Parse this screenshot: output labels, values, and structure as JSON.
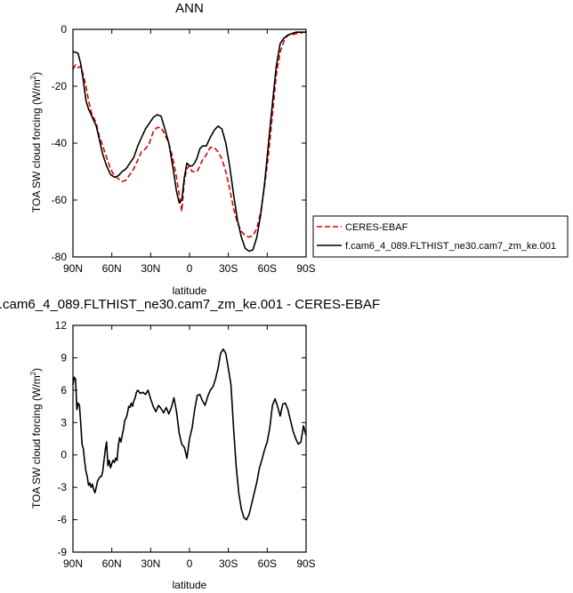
{
  "chart_data": [
    {
      "type": "line",
      "title": "ANN",
      "xlabel": "latitude",
      "ylabel": "TOA SW cloud forcing (W/m",
      "ylabel_sup": "2",
      "ylabel_tail": ")",
      "xlim": [
        90,
        -90
      ],
      "ylim": [
        -80,
        0
      ],
      "xticks": [
        90,
        60,
        30,
        0,
        -30,
        -60,
        -90
      ],
      "xtick_labels": [
        "90N",
        "60N",
        "30N",
        "0",
        "30S",
        "60S",
        "90S"
      ],
      "yticks": [
        0,
        -20,
        -40,
        -60,
        -80
      ],
      "ytick_labels": [
        "0",
        "-20",
        "-40",
        "-60",
        "-80"
      ],
      "legend_position": "right",
      "series": [
        {
          "name": "CERES-EBAF",
          "color": "#dd0000",
          "dash": "dashed",
          "x": [
            90,
            88,
            86,
            84,
            82,
            80,
            78,
            76,
            74,
            72,
            70,
            67,
            64,
            61,
            58,
            55,
            52,
            49,
            46,
            43,
            40,
            37,
            34,
            31,
            28,
            25,
            22,
            19,
            16,
            13,
            10,
            8,
            6,
            4,
            2,
            0,
            -2,
            -4,
            -6,
            -8,
            -10,
            -13,
            -16,
            -19,
            -22,
            -25,
            -28,
            -31,
            -34,
            -37,
            -40,
            -43,
            -46,
            -49,
            -52,
            -55,
            -58,
            -61,
            -64,
            -67,
            -70,
            -73,
            -76,
            -79,
            -82,
            -85,
            -88,
            -90
          ],
          "y": [
            -14,
            -12.5,
            -13.5,
            -13,
            -16,
            -20,
            -25,
            -29,
            -31,
            -33,
            -37,
            -41,
            -45,
            -49,
            -51.5,
            -52.5,
            -53.5,
            -53,
            -51,
            -49,
            -46,
            -43,
            -42,
            -40,
            -36,
            -34.5,
            -34.5,
            -37,
            -40,
            -45,
            -52,
            -58,
            -64,
            -53,
            -49,
            -48,
            -50,
            -50,
            -50,
            -48,
            -46,
            -44,
            -41.5,
            -41.5,
            -43,
            -45.5,
            -50,
            -56,
            -63,
            -68,
            -71,
            -72.5,
            -73,
            -72.5,
            -70,
            -64,
            -55,
            -44,
            -30,
            -16,
            -8,
            -4,
            -2,
            -2,
            -1.5,
            -1.5,
            -1,
            -1
          ]
        },
        {
          "name": "f.cam6_4_089.FLTHIST_ne30.cam7_zm_ke.001",
          "color": "#000000",
          "dash": "solid",
          "x": [
            90,
            88,
            86,
            84,
            82,
            80,
            78,
            76,
            74,
            72,
            70,
            67,
            64,
            61,
            58,
            55,
            52,
            49,
            46,
            43,
            40,
            37,
            34,
            31,
            28,
            25,
            22,
            19,
            16,
            13,
            10,
            8,
            6,
            4,
            2,
            0,
            -2,
            -4,
            -6,
            -8,
            -10,
            -13,
            -16,
            -19,
            -22,
            -25,
            -28,
            -31,
            -34,
            -37,
            -40,
            -43,
            -46,
            -49,
            -52,
            -55,
            -58,
            -61,
            -64,
            -67,
            -70,
            -73,
            -76,
            -79,
            -82,
            -85,
            -88,
            -90
          ],
          "y": [
            -8,
            -8,
            -8.5,
            -12,
            -18,
            -25,
            -28,
            -30,
            -32,
            -34,
            -38,
            -44,
            -48,
            -51,
            -52,
            -51.5,
            -50,
            -49,
            -47,
            -45,
            -41,
            -38,
            -35,
            -33,
            -31,
            -30,
            -30.5,
            -35,
            -40,
            -48,
            -57,
            -61,
            -60,
            -52,
            -47,
            -48,
            -48,
            -47,
            -45,
            -42,
            -41,
            -41,
            -38,
            -35.5,
            -34,
            -35,
            -40,
            -48,
            -58,
            -67,
            -73,
            -77,
            -78,
            -77.5,
            -73,
            -65,
            -54,
            -40,
            -26,
            -13,
            -5,
            -3,
            -2,
            -1.5,
            -1,
            -1,
            -1,
            -1
          ]
        }
      ]
    },
    {
      "type": "line",
      "title": ".cam6_4_089.FLTHIST_ne30.cam7_zm_ke.001 - CERES-EBAF",
      "xlabel": "latitude",
      "ylabel": "TOA SW cloud forcing (W/m",
      "ylabel_sup": "2",
      "ylabel_tail": ")",
      "xlim": [
        90,
        -90
      ],
      "ylim": [
        -9,
        12
      ],
      "xticks": [
        90,
        60,
        30,
        0,
        -30,
        -60,
        -90
      ],
      "xtick_labels": [
        "90N",
        "60N",
        "30N",
        "0",
        "30S",
        "60S",
        "90S"
      ],
      "yticks": [
        12,
        9,
        6,
        3,
        0,
        -3,
        -6,
        -9
      ],
      "ytick_labels": [
        "12",
        "9",
        "6",
        "3",
        "0",
        "-3",
        "-6",
        "-9"
      ],
      "series": [
        {
          "name": "",
          "color": "#000000",
          "dash": "solid",
          "x": [
            90,
            89,
            88,
            87,
            86,
            85,
            84,
            83,
            82,
            81,
            80,
            79,
            78,
            77,
            76,
            75,
            74,
            73,
            72,
            71,
            70,
            69,
            68,
            67,
            66,
            65,
            64,
            63,
            62,
            61,
            60,
            59,
            58,
            57,
            56,
            55,
            54,
            53,
            52,
            51,
            50,
            49,
            48,
            47,
            46,
            45,
            44,
            43,
            42,
            41,
            40,
            38,
            36,
            34,
            32,
            30,
            28,
            26,
            24,
            22,
            20,
            18,
            16,
            14,
            12,
            10,
            8,
            6,
            4,
            2,
            0,
            -2,
            -4,
            -6,
            -8,
            -10,
            -12,
            -14,
            -16,
            -18,
            -20,
            -22,
            -24,
            -26,
            -28,
            -30,
            -32,
            -34,
            -36,
            -38,
            -40,
            -42,
            -44,
            -46,
            -48,
            -50,
            -52,
            -54,
            -56,
            -58,
            -60,
            -62,
            -64,
            -66,
            -68,
            -70,
            -72,
            -74,
            -76,
            -78,
            -80,
            -82,
            -84,
            -86,
            -88,
            -90
          ],
          "y": [
            6.5,
            7.2,
            7.0,
            4.2,
            4.8,
            4.6,
            3.0,
            1.0,
            0.6,
            -0.6,
            -1.5,
            -2.0,
            -2.8,
            -2.6,
            -3.0,
            -2.7,
            -3.2,
            -3.5,
            -3.0,
            -2.4,
            -2.2,
            -2.0,
            -2.0,
            -1.5,
            -0.5,
            0.5,
            1.2,
            -1.0,
            -0.5,
            -1.2,
            -0.8,
            -0.5,
            -0.7,
            -0.3,
            -0.5,
            0.8,
            1.6,
            1.2,
            1.8,
            2.4,
            3.2,
            3.4,
            3.8,
            4.5,
            4.4,
            4.8,
            4.5,
            5.0,
            5.3,
            5.8,
            6.0,
            5.7,
            5.8,
            5.6,
            6.0,
            5.2,
            4.5,
            4.0,
            4.6,
            4.3,
            3.9,
            4.4,
            3.8,
            4.4,
            5.3,
            4.0,
            2.0,
            1.0,
            0.7,
            -0.3,
            1.5,
            2.5,
            4.2,
            5.5,
            5.6,
            5.0,
            4.6,
            5.4,
            6.0,
            6.3,
            7.0,
            8.0,
            9.4,
            9.8,
            9.4,
            8.0,
            6.5,
            2.5,
            -1.0,
            -3.5,
            -5.0,
            -5.8,
            -6.0,
            -5.5,
            -4.5,
            -3.5,
            -2.5,
            -1.2,
            -0.4,
            0.5,
            1.2,
            2.5,
            4.6,
            5.2,
            4.5,
            3.6,
            4.7,
            4.8,
            4.2,
            3.2,
            2.2,
            1.5,
            1.0,
            1.2,
            2.7,
            1.8
          ]
        }
      ]
    }
  ]
}
